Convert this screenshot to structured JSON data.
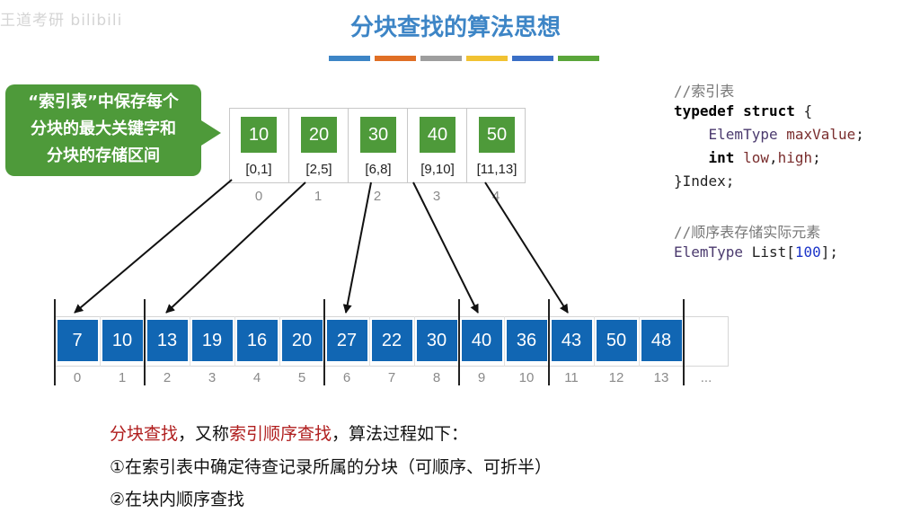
{
  "watermark": "王道考研 bilibili",
  "title": "分块查找的算法思想",
  "stripe_colors": [
    "#3d85c6",
    "#e06f25",
    "#9e9e9e",
    "#f1c232",
    "#3a6fc6",
    "#5aa63a"
  ],
  "callout": {
    "lines": [
      "“索引表”中保存每个",
      "分块的最大关键字和",
      "分块的存储区间"
    ]
  },
  "index_table": {
    "entries": [
      {
        "max": "10",
        "range": "[0,1]",
        "index": "0"
      },
      {
        "max": "20",
        "range": "[2,5]",
        "index": "1"
      },
      {
        "max": "30",
        "range": "[6,8]",
        "index": "2"
      },
      {
        "max": "40",
        "range": "[9,10]",
        "index": "3"
      },
      {
        "max": "50",
        "range": "[11,13]",
        "index": "4"
      }
    ]
  },
  "code": {
    "comment1": "//索引表",
    "kw_typedef": "typedef",
    "kw_struct": "struct",
    "brace_open": "{",
    "type1": "ElemType",
    "field1": "maxValue",
    "semi": ";",
    "kw_int": "int",
    "field2": "low",
    "comma": ",",
    "field3": "high",
    "close_name": "}Index;",
    "comment2": "//顺序表存储实际元素",
    "type2": "ElemType",
    "list_name": "List[",
    "list_size": "100",
    "list_end": "];"
  },
  "array": {
    "values": [
      "7",
      "10",
      "13",
      "19",
      "16",
      "20",
      "27",
      "22",
      "30",
      "40",
      "36",
      "43",
      "50",
      "48"
    ],
    "indices": [
      "0",
      "1",
      "2",
      "3",
      "4",
      "5",
      "6",
      "7",
      "8",
      "9",
      "10",
      "11",
      "12",
      "13"
    ],
    "ellipsis": "..."
  },
  "description": {
    "line1_term1": "分块查找",
    "line1_mid": "，又称",
    "line1_term2": "索引顺序查找",
    "line1_end": "，算法过程如下：",
    "step1": "①在索引表中确定待查记录所属的分块（可顺序、可折半）",
    "step2": "②在块内顺序查找"
  }
}
